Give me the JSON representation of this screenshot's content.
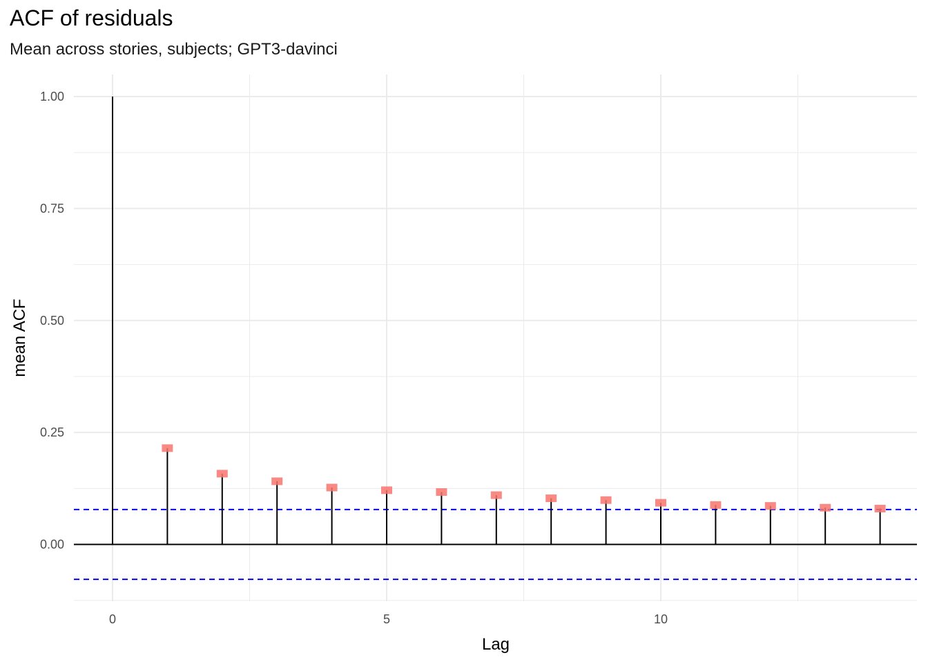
{
  "chart_data": {
    "type": "bar",
    "title": "ACF of residuals",
    "subtitle": "Mean across stories, subjects; GPT3-davinci",
    "xlabel": "Lag",
    "ylabel": "mean ACF",
    "x": [
      0,
      1,
      2,
      3,
      4,
      5,
      6,
      7,
      8,
      9,
      10,
      11,
      12,
      13,
      14
    ],
    "values": [
      1.0,
      0.215,
      0.158,
      0.141,
      0.127,
      0.121,
      0.117,
      0.11,
      0.103,
      0.099,
      0.093,
      0.088,
      0.086,
      0.082,
      0.08
    ],
    "xlim": [
      -0.7,
      14.7
    ],
    "ylim": [
      -0.125,
      1.0
    ],
    "x_ticks": [
      0,
      5,
      10
    ],
    "x_tick_labels": [
      "0",
      "5",
      "10"
    ],
    "y_ticks": [
      0.0,
      0.25,
      0.5,
      0.75,
      1.0
    ],
    "y_tick_labels": [
      "0.00",
      "0.25",
      "0.50",
      "0.75",
      "1.00"
    ],
    "confidence_bounds": [
      0.078,
      -0.078
    ],
    "grid": true,
    "colors": {
      "stem": "#000000",
      "marker": "#f8766d",
      "confidence_line": "#0000ff",
      "grid": "#ebebeb"
    }
  }
}
